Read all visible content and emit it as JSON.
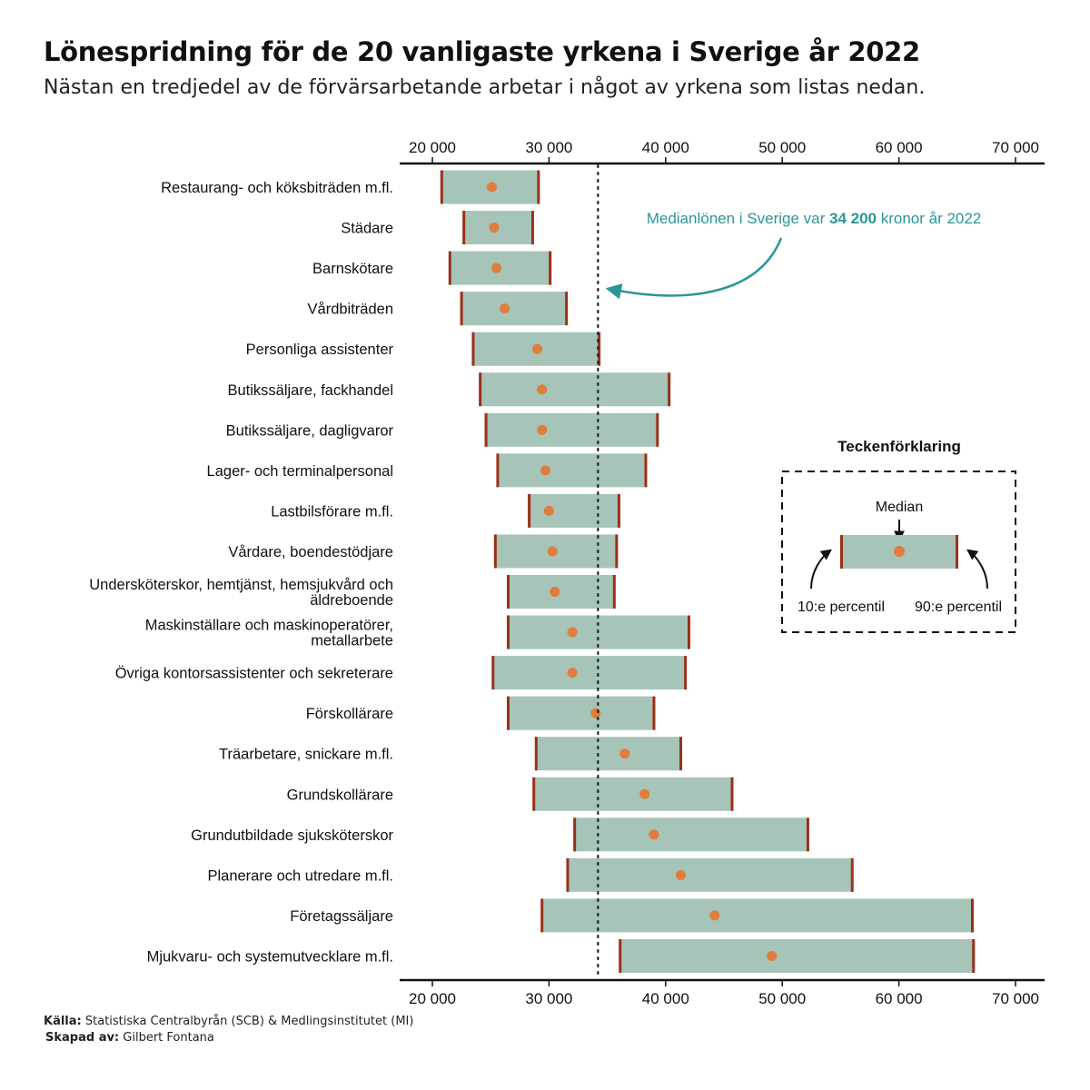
{
  "title": "Lönespridning för de 20 vanligaste yrkena i Sverige år 2022",
  "subtitle": "Nästan en tredjedel av de förvärsarbetande arbetar i något av yrkena som listas nedan.",
  "annotation": {
    "prefix": "Medianlönen i Sverige var ",
    "value": "34 200",
    "suffix": " kronor år 2022",
    "national_median": 34200,
    "color": "#2a9696"
  },
  "legend": {
    "title": "Teckenförklaring",
    "median_label": "Median",
    "p10_label": "10:e percentil",
    "p90_label": "90:e percentil"
  },
  "footer": {
    "source_label": "Källa:",
    "source_text": "Statistiska Centralbyrån (SCB) & Medlingsinstitutet (MI)",
    "author_label": "Skapad av:",
    "author_text": "Gilbert Fontana"
  },
  "colors": {
    "bar": "#a6c4b8",
    "percentile": "#9a3018",
    "median_dot": "#e07d3c",
    "annotation": "#2a9696"
  },
  "chart_data": {
    "type": "range-bar",
    "xlim": [
      20000,
      70000
    ],
    "ticks": [
      20000,
      30000,
      40000,
      50000,
      60000,
      70000
    ],
    "tick_labels": [
      "20 000",
      "30 000",
      "40 000",
      "50 000",
      "60 000",
      "70 000"
    ],
    "categories": [
      {
        "label": [
          "Restaurang- och köksbiträden m.fl."
        ],
        "p10": 20800,
        "median": 25100,
        "p90": 29100
      },
      {
        "label": [
          "Städare"
        ],
        "p10": 22700,
        "median": 25300,
        "p90": 28600
      },
      {
        "label": [
          "Barnskötare"
        ],
        "p10": 21500,
        "median": 25500,
        "p90": 30100
      },
      {
        "label": [
          "Vårdbiträden"
        ],
        "p10": 22500,
        "median": 26200,
        "p90": 31500
      },
      {
        "label": [
          "Personliga assistenter"
        ],
        "p10": 23500,
        "median": 29000,
        "p90": 34300
      },
      {
        "label": [
          "Butikssäljare, fackhandel"
        ],
        "p10": 24100,
        "median": 29400,
        "p90": 40300
      },
      {
        "label": [
          "Butikssäljare, dagligvaror"
        ],
        "p10": 24600,
        "median": 29400,
        "p90": 39300
      },
      {
        "label": [
          "Lager- och terminalpersonal"
        ],
        "p10": 25600,
        "median": 29700,
        "p90": 38300
      },
      {
        "label": [
          "Lastbilsförare m.fl."
        ],
        "p10": 28300,
        "median": 30000,
        "p90": 36000
      },
      {
        "label": [
          "Vårdare, boendestödjare"
        ],
        "p10": 25400,
        "median": 30300,
        "p90": 35800
      },
      {
        "label": [
          "Undersköterskor, hemtjänst, hemsjukvård och",
          "äldreboende"
        ],
        "p10": 26500,
        "median": 30500,
        "p90": 35600
      },
      {
        "label": [
          "Maskinställare och maskinoperatörer,",
          "metallarbete"
        ],
        "p10": 26500,
        "median": 32000,
        "p90": 42000
      },
      {
        "label": [
          "Övriga kontorsassistenter och sekreterare"
        ],
        "p10": 25200,
        "median": 32000,
        "p90": 41700
      },
      {
        "label": [
          "Förskollärare"
        ],
        "p10": 26500,
        "median": 34000,
        "p90": 39000
      },
      {
        "label": [
          "Träarbetare, snickare m.fl."
        ],
        "p10": 28900,
        "median": 36500,
        "p90": 41300
      },
      {
        "label": [
          "Grundskollärare"
        ],
        "p10": 28700,
        "median": 38200,
        "p90": 45700
      },
      {
        "label": [
          "Grundutbildade sjuksköterskor"
        ],
        "p10": 32200,
        "median": 39000,
        "p90": 52200
      },
      {
        "label": [
          "Planerare och utredare m.fl."
        ],
        "p10": 31600,
        "median": 41300,
        "p90": 56000
      },
      {
        "label": [
          "Företagssäljare"
        ],
        "p10": 29400,
        "median": 44200,
        "p90": 66300
      },
      {
        "label": [
          "Mjukvaru- och systemutvecklare m.fl."
        ],
        "p10": 36100,
        "median": 49100,
        "p90": 66400
      }
    ]
  }
}
